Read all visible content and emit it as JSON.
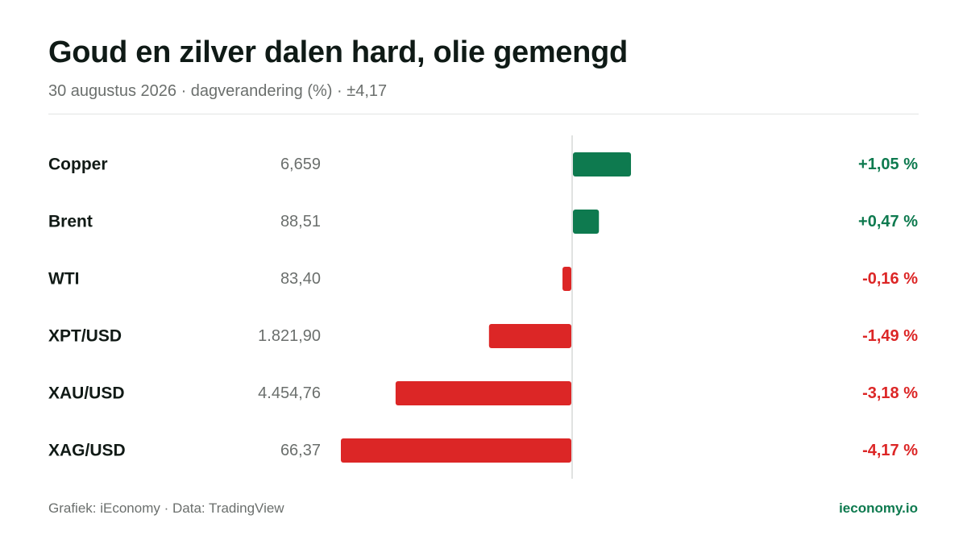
{
  "header": {
    "title": "Goud en zilver dalen hard, olie gemengd",
    "subtitle": "30 augustus 2026 · dagverandering (%) · ±4,17"
  },
  "colors": {
    "positive": "#0e7a4f",
    "negative": "#dc2626",
    "brand": "#0e7a4f"
  },
  "chart_data": {
    "type": "bar",
    "orientation": "horizontal",
    "categories": [
      "Copper",
      "Brent",
      "WTI",
      "XPT/USD",
      "XAU/USD",
      "XAG/USD"
    ],
    "prices": [
      "6,659",
      "88,51",
      "83,40",
      "1.821,90",
      "4.454,76",
      "66,37"
    ],
    "values": [
      1.05,
      0.47,
      -0.16,
      -1.49,
      -3.18,
      -4.17
    ],
    "value_labels": [
      "+1,05 %",
      "+0,47 %",
      "-0,16 %",
      "-1,49 %",
      "-3,18 %",
      "-4,17 %"
    ],
    "xlim": [
      -4.17,
      4.17
    ],
    "unit": "%",
    "grid": false,
    "legend": "none"
  },
  "footer": {
    "source": "Grafiek: iEconomy · Data: TradingView",
    "brand": "ieconomy.io"
  }
}
